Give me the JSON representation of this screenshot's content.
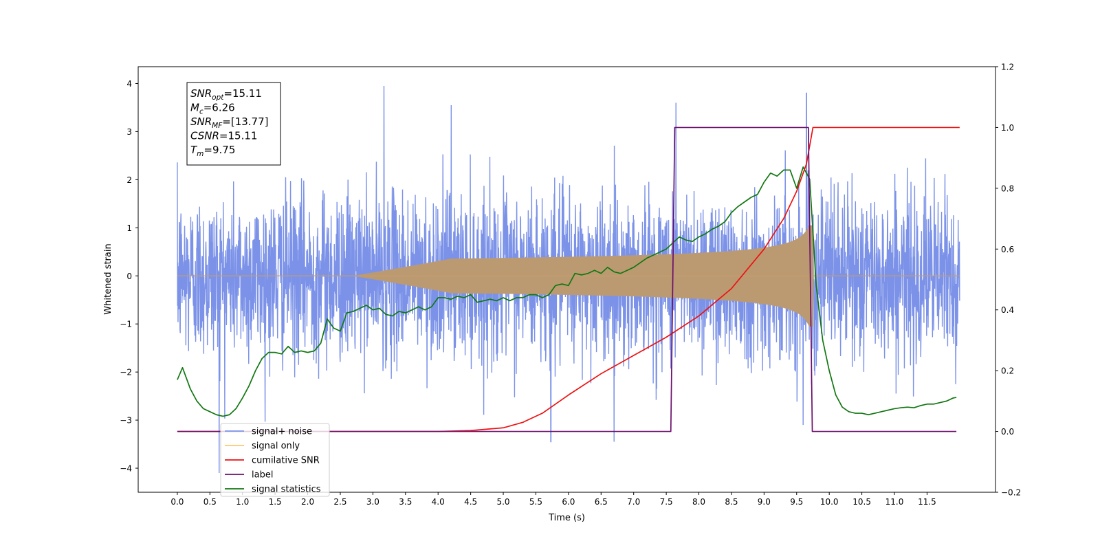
{
  "chart_data": {
    "type": "line",
    "xlabel": "Time (s)",
    "ylabel": "Whitened strain",
    "xlim": [
      -0.6,
      12.55
    ],
    "ylim_left": [
      -4.5,
      4.35
    ],
    "ylim_right": [
      -0.2,
      1.2
    ],
    "x_ticks": [
      "0.0",
      "0.5",
      "1.0",
      "1.5",
      "2.0",
      "2.5",
      "3.0",
      "3.5",
      "4.0",
      "4.5",
      "5.0",
      "5.5",
      "6.0",
      "6.5",
      "7.0",
      "7.5",
      "8.0",
      "8.5",
      "9.0",
      "9.5",
      "10.0",
      "10.5",
      "11.0",
      "11.5"
    ],
    "y_ticks_left": [
      "4",
      "3",
      "2",
      "1",
      "0",
      "−1",
      "−2",
      "−3",
      "−4"
    ],
    "y_ticks_right": [
      "1.2",
      "1.0",
      "0.8",
      "0.6",
      "0.4",
      "0.2",
      "0.0",
      "−0.2"
    ],
    "annotation": {
      "lines": [
        {
          "var": "SNR",
          "sub": "opt",
          "value": "=15.11"
        },
        {
          "var": "M",
          "sub": "c",
          "value": "=6.26"
        },
        {
          "var": "SNR",
          "sub": "MF",
          "value": "=[13.77]"
        },
        {
          "var": "CSNR",
          "sub": "",
          "value": "=15.11"
        },
        {
          "var": "T",
          "sub": "m",
          "value": "=9.75"
        }
      ]
    },
    "legend": {
      "placement": "lower-left",
      "entries": [
        {
          "label": "signal+ noise",
          "color": "#7b92e8"
        },
        {
          "label": "signal only",
          "color": "#ffc86e"
        },
        {
          "label": "cumilative SNR",
          "color": "#ee1111"
        },
        {
          "label": "label",
          "color": "#6b0f6b"
        },
        {
          "label": "signal statistics",
          "color": "#117711"
        }
      ]
    },
    "series": [
      {
        "name": "signal+ noise",
        "axis": "left",
        "color": "#7b92e8",
        "description_kind": "noise",
        "x_range": [
          0.0,
          12.0
        ],
        "std": 0.85,
        "peaks": [
          [
            3.17,
            3.95
          ],
          [
            0.64,
            -4.1
          ],
          [
            9.65,
            3.8
          ],
          [
            7.65,
            3.6
          ],
          [
            4.2,
            3.55
          ],
          [
            9.6,
            -3.1
          ],
          [
            6.7,
            -3.45
          ],
          [
            5.73,
            -3.45
          ]
        ]
      },
      {
        "name": "signal only",
        "axis": "left",
        "color": "#c69c6d",
        "envelope": {
          "t_merge": 9.75,
          "amp_at_merge": 1.0,
          "start": 4.2
        }
      },
      {
        "name": "cumilative SNR",
        "axis": "right",
        "color": "#ee1111",
        "x": [
          0.0,
          4.0,
          4.5,
          5.0,
          5.3,
          5.6,
          6.0,
          6.5,
          7.0,
          7.5,
          8.0,
          8.5,
          9.0,
          9.3,
          9.5,
          9.65,
          9.75,
          12.0
        ],
        "y": [
          0.0,
          0.0,
          0.003,
          0.012,
          0.03,
          0.06,
          0.12,
          0.19,
          0.25,
          0.31,
          0.38,
          0.47,
          0.6,
          0.7,
          0.79,
          0.88,
          1.0,
          1.0
        ]
      },
      {
        "name": "label",
        "axis": "right",
        "color": "#6b0f6b",
        "x": [
          0.0,
          7.57,
          7.63,
          9.68,
          9.74,
          11.95
        ],
        "y": [
          0.0,
          0.0,
          1.0,
          1.0,
          0.0,
          0.0
        ]
      },
      {
        "name": "signal statistics",
        "axis": "right",
        "color": "#117711",
        "x": [
          0.0,
          0.08,
          0.2,
          0.3,
          0.4,
          0.5,
          0.6,
          0.7,
          0.8,
          0.9,
          1.0,
          1.1,
          1.2,
          1.3,
          1.4,
          1.5,
          1.6,
          1.7,
          1.8,
          1.9,
          2.0,
          2.1,
          2.2,
          2.3,
          2.4,
          2.5,
          2.6,
          2.7,
          2.8,
          2.9,
          3.0,
          3.1,
          3.2,
          3.3,
          3.4,
          3.5,
          3.6,
          3.7,
          3.8,
          3.9,
          4.0,
          4.1,
          4.2,
          4.3,
          4.4,
          4.5,
          4.6,
          4.7,
          4.8,
          4.9,
          5.0,
          5.1,
          5.2,
          5.3,
          5.4,
          5.5,
          5.6,
          5.7,
          5.8,
          5.9,
          6.0,
          6.1,
          6.2,
          6.3,
          6.4,
          6.5,
          6.6,
          6.7,
          6.8,
          6.9,
          7.0,
          7.1,
          7.2,
          7.3,
          7.4,
          7.5,
          7.6,
          7.7,
          7.8,
          7.9,
          8.0,
          8.1,
          8.2,
          8.3,
          8.4,
          8.5,
          8.6,
          8.7,
          8.8,
          8.9,
          9.0,
          9.1,
          9.2,
          9.3,
          9.4,
          9.5,
          9.6,
          9.7,
          9.8,
          9.9,
          10.0,
          10.1,
          10.2,
          10.3,
          10.4,
          10.5,
          10.6,
          10.7,
          10.8,
          10.9,
          11.0,
          11.1,
          11.2,
          11.3,
          11.4,
          11.5,
          11.6,
          11.7,
          11.8,
          11.9,
          11.95
        ],
        "y": [
          0.17,
          0.21,
          0.14,
          0.1,
          0.075,
          0.065,
          0.055,
          0.05,
          0.055,
          0.075,
          0.11,
          0.15,
          0.2,
          0.24,
          0.26,
          0.26,
          0.255,
          0.28,
          0.26,
          0.265,
          0.26,
          0.265,
          0.29,
          0.37,
          0.34,
          0.33,
          0.39,
          0.395,
          0.405,
          0.415,
          0.4,
          0.405,
          0.385,
          0.38,
          0.395,
          0.39,
          0.4,
          0.41,
          0.4,
          0.41,
          0.44,
          0.44,
          0.435,
          0.445,
          0.44,
          0.45,
          0.425,
          0.43,
          0.435,
          0.43,
          0.44,
          0.43,
          0.44,
          0.44,
          0.45,
          0.45,
          0.44,
          0.45,
          0.48,
          0.485,
          0.48,
          0.52,
          0.515,
          0.52,
          0.53,
          0.52,
          0.54,
          0.525,
          0.52,
          0.53,
          0.54,
          0.555,
          0.57,
          0.58,
          0.59,
          0.6,
          0.62,
          0.64,
          0.63,
          0.625,
          0.64,
          0.65,
          0.665,
          0.675,
          0.69,
          0.72,
          0.74,
          0.755,
          0.77,
          0.78,
          0.82,
          0.85,
          0.84,
          0.86,
          0.86,
          0.8,
          0.87,
          0.83,
          0.48,
          0.3,
          0.2,
          0.12,
          0.08,
          0.065,
          0.06,
          0.06,
          0.055,
          0.06,
          0.065,
          0.07,
          0.075,
          0.078,
          0.08,
          0.078,
          0.085,
          0.09,
          0.09,
          0.095,
          0.1,
          0.11,
          0.112
        ]
      }
    ]
  }
}
